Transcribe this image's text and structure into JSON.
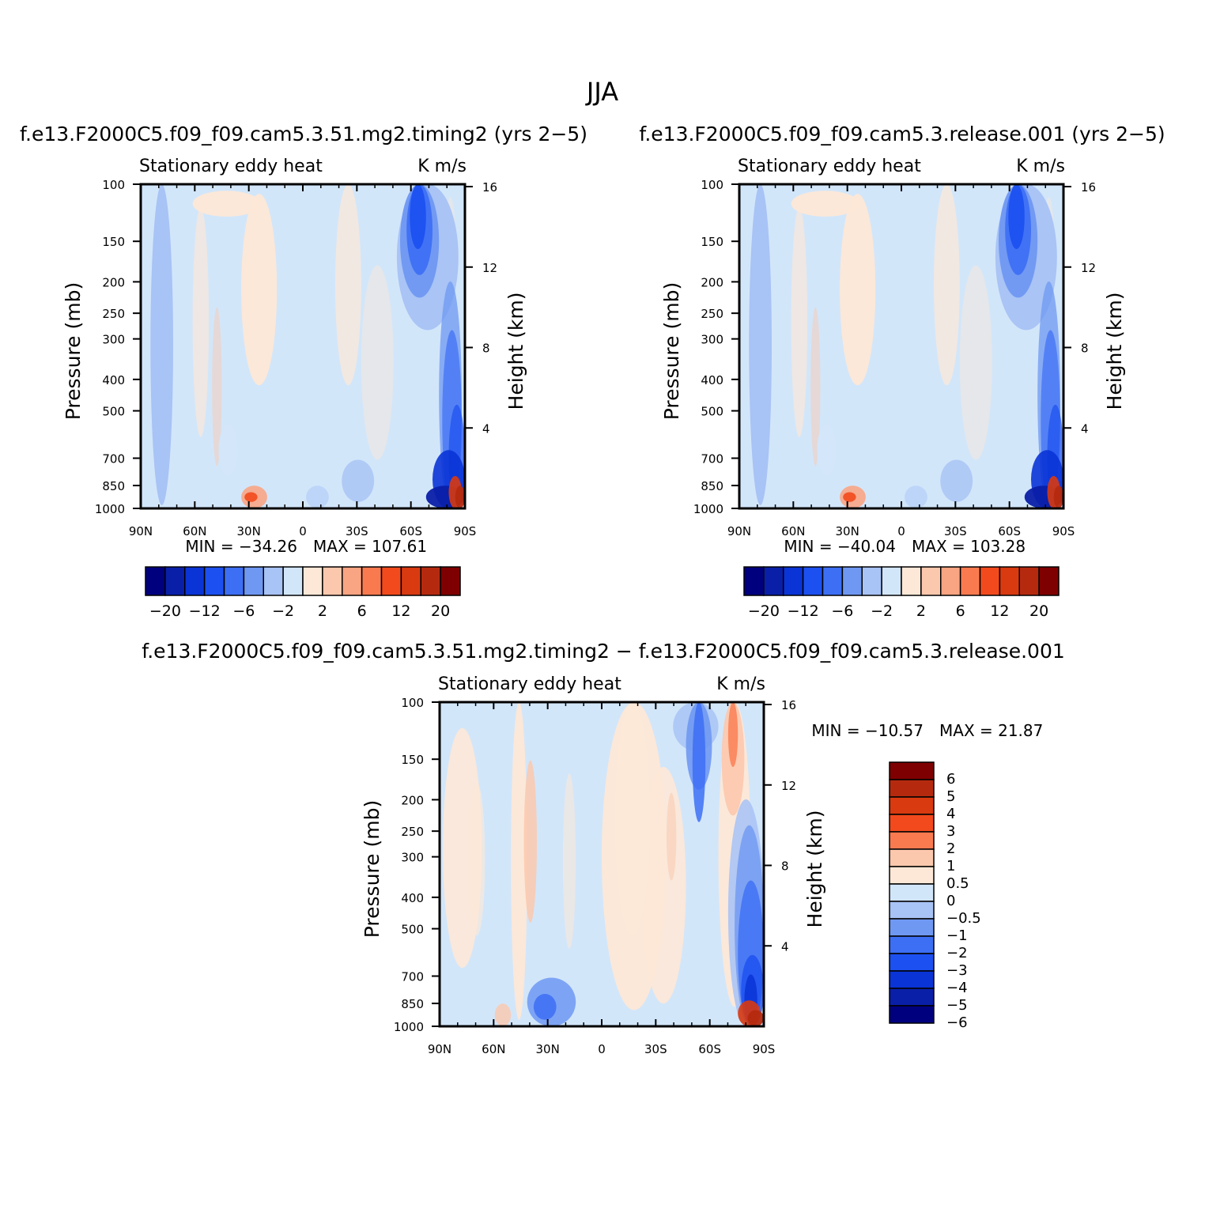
{
  "figure": {
    "title": "JJA"
  },
  "colors": {
    "full_levels": [
      "#00007f",
      "#0a1fa8",
      "#0a34d6",
      "#1c50f0",
      "#3d6ff5",
      "#6f98f2",
      "#a8c3f5",
      "#d2e6fa",
      "#fde8d7",
      "#fcc8ad",
      "#f9a482",
      "#fa7a4f",
      "#f24a1d",
      "#d93a10",
      "#b52a0f",
      "#7f0000"
    ],
    "diff_levels": [
      "#00007f",
      "#0a1fa8",
      "#0a34d6",
      "#1c50f0",
      "#3d6ff5",
      "#6f98f2",
      "#a8c3f5",
      "#d2e6fa",
      "#fde8d7",
      "#fcc8ad",
      "#fa7a4f",
      "#f24a1d",
      "#d93a10",
      "#b52a0f",
      "#7f0000"
    ],
    "background_light_blue": "#d2e6fa",
    "background_light_red": "#fde8d7"
  },
  "chart_data": [
    {
      "type": "heatmap",
      "name": "timing2",
      "title": "f.e13.F2000C5.f09_f09.cam5.3.51.mg2.timing2 (yrs 2−5)",
      "subtitle_left": "Stationary eddy heat",
      "subtitle_right": "K m/s",
      "xlabel": "",
      "ylabel": "Pressure (mb)",
      "ylabel_right": "Height (km)",
      "x_ticks": [
        "90N",
        "60N",
        "30N",
        "0",
        "30S",
        "60S",
        "90S"
      ],
      "y_ticks": [
        "100",
        "150",
        "200",
        "250",
        "300",
        "400",
        "500",
        "700",
        "850",
        "1000"
      ],
      "y_ticks_right": [
        "16",
        "12",
        "8",
        "4"
      ],
      "min_label": "MIN = −34.26",
      "max_label": "MAX = 107.61",
      "min": -34.26,
      "max": 107.61,
      "colorbar_labels": [
        "−20",
        "−12",
        "−6",
        "−2",
        "2",
        "6",
        "12",
        "20"
      ]
    },
    {
      "type": "heatmap",
      "name": "release001",
      "title": "f.e13.F2000C5.f09_f09.cam5.3.release.001 (yrs 2−5)",
      "subtitle_left": "Stationary eddy heat",
      "subtitle_right": "K m/s",
      "xlabel": "",
      "ylabel": "Pressure (mb)",
      "ylabel_right": "Height (km)",
      "x_ticks": [
        "90N",
        "60N",
        "30N",
        "0",
        "30S",
        "60S",
        "90S"
      ],
      "y_ticks": [
        "100",
        "150",
        "200",
        "250",
        "300",
        "400",
        "500",
        "700",
        "850",
        "1000"
      ],
      "y_ticks_right": [
        "16",
        "12",
        "8",
        "4"
      ],
      "min_label": "MIN = −40.04",
      "max_label": "MAX = 103.28",
      "min": -40.04,
      "max": 103.28,
      "colorbar_labels": [
        "−20",
        "−12",
        "−6",
        "−2",
        "2",
        "6",
        "12",
        "20"
      ]
    },
    {
      "type": "heatmap",
      "name": "difference",
      "title": "f.e13.F2000C5.f09_f09.cam5.3.51.mg2.timing2 − f.e13.F2000C5.f09_f09.cam5.3.release.001",
      "subtitle_left": "Stationary eddy heat",
      "subtitle_right": "K m/s",
      "xlabel": "",
      "ylabel": "Pressure (mb)",
      "ylabel_right": "Height (km)",
      "x_ticks": [
        "90N",
        "60N",
        "30N",
        "0",
        "30S",
        "60S",
        "90S"
      ],
      "y_ticks": [
        "100",
        "150",
        "200",
        "250",
        "300",
        "400",
        "500",
        "700",
        "850",
        "1000"
      ],
      "y_ticks_right": [
        "16",
        "12",
        "8",
        "4"
      ],
      "min_label": "MIN = −10.57",
      "max_label": "MAX =  21.87",
      "min": -10.57,
      "max": 21.87,
      "colorbar_labels": [
        "6",
        "5",
        "4",
        "3",
        "2",
        "1",
        "0.5",
        "0",
        "−0.5",
        "−1",
        "−2",
        "−3",
        "−4",
        "−5",
        "−6"
      ]
    }
  ]
}
